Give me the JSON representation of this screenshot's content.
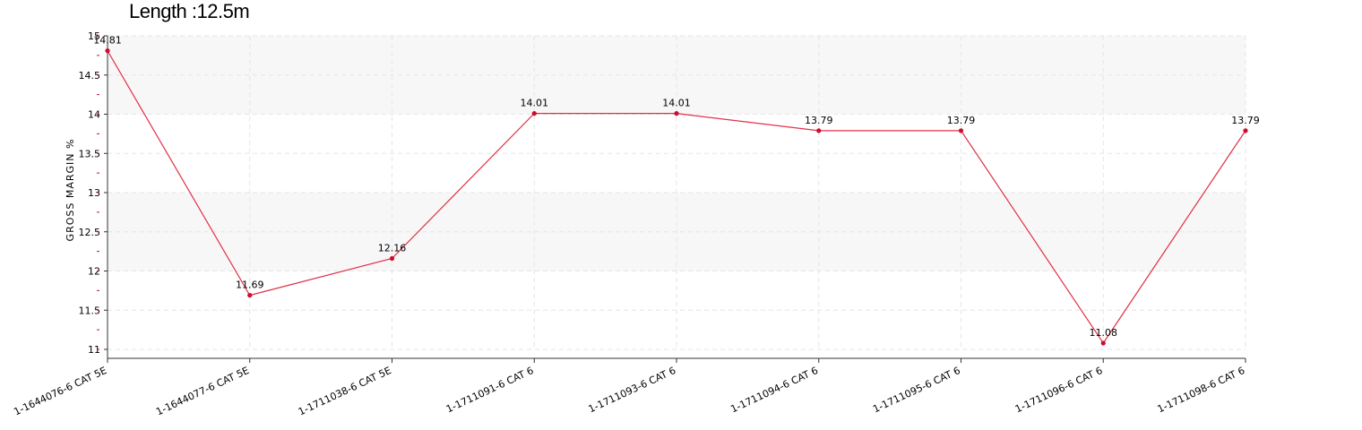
{
  "chart_data": {
    "type": "line",
    "title": "Length :12.5m",
    "xlabel": "",
    "ylabel": "GROSS MARGIN %",
    "categories": [
      "1-1644076-6 CAT 5E",
      "1-1644077-6 CAT 5E",
      "1-1711038-6 CAT 5E",
      "1-1711091-6 CAT 6",
      "1-1711093-6 CAT 6",
      "1-1711094-6 CAT 6",
      "1-1711095-6 CAT 6",
      "1-1711096-6 CAT 6",
      "1-1711098-6 CAT 6"
    ],
    "series": [
      {
        "values": [
          14.81,
          11.69,
          12.16,
          14.01,
          14.01,
          13.79,
          13.79,
          11.08,
          13.79
        ]
      }
    ],
    "data_labels": [
      "14.81",
      "11.69",
      "12.16",
      "14.01",
      "14.01",
      "13.79",
      "13.79",
      "11.08",
      "13.79"
    ],
    "ylim": [
      11,
      15
    ],
    "yticks": [
      11,
      11.5,
      12,
      12.5,
      13,
      13.5,
      14,
      14.5,
      15
    ],
    "ytick_labels": [
      "11",
      "11.5",
      "12",
      "12.5",
      "13",
      "13.5",
      "14",
      "14.5",
      "15"
    ],
    "grid": true,
    "line_color": "#e0304a",
    "marker_color": "#c8102e",
    "band_color": "#f7f7f7",
    "grid_color": "#e6e6e6"
  }
}
